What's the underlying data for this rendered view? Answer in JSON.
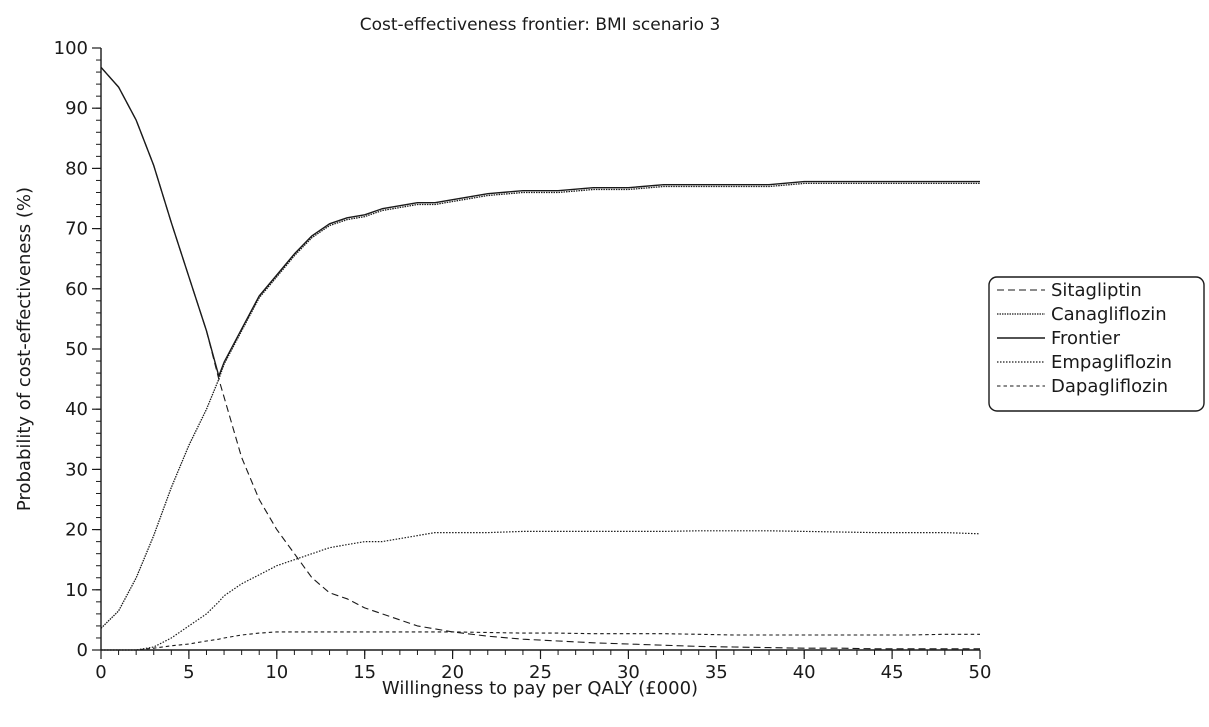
{
  "chart_data": {
    "type": "line",
    "title": "Cost-effectiveness frontier: BMI scenario 3",
    "xlabel": "Willingness to pay per QALY (£000)",
    "ylabel": "Probability of cost-effectiveness (%)",
    "xlim": [
      0,
      50
    ],
    "ylim": [
      0,
      100
    ],
    "x_ticks": [
      0,
      5,
      10,
      15,
      20,
      25,
      30,
      35,
      40,
      45,
      50
    ],
    "y_ticks": [
      0,
      10,
      20,
      30,
      40,
      50,
      60,
      70,
      80,
      90,
      100
    ],
    "grid": false,
    "legend_position": "right",
    "x": [
      0,
      1,
      2,
      3,
      4,
      5,
      6,
      6.7,
      7,
      8,
      9,
      10,
      11,
      12,
      13,
      14,
      15,
      16,
      17,
      18,
      19,
      20,
      22,
      24,
      26,
      28,
      30,
      32,
      34,
      36,
      38,
      40,
      42,
      44,
      46,
      48,
      50
    ],
    "series": [
      {
        "name": "Sitagliptin",
        "style": "dashed",
        "values": [
          96.8,
          93.5,
          88,
          80.5,
          71,
          62,
          53,
          45,
          42,
          32,
          25,
          20,
          16,
          12,
          9.5,
          8.5,
          7,
          6,
          5,
          4,
          3.5,
          3,
          2.3,
          1.8,
          1.5,
          1.2,
          1,
          0.8,
          0.6,
          0.5,
          0.4,
          0.3,
          0.3,
          0.2,
          0.2,
          0.2,
          0.2
        ]
      },
      {
        "name": "Canagliflozin",
        "style": "dotted-fine",
        "values": [
          3.6,
          6.5,
          12,
          19,
          27,
          34,
          40,
          45,
          47.5,
          53,
          58.5,
          62,
          65.5,
          68.5,
          70.5,
          71.5,
          72,
          73,
          73.5,
          74,
          74,
          74.5,
          75.5,
          76,
          76,
          76.5,
          76.5,
          77,
          77,
          77,
          77,
          77.5,
          77.5,
          77.5,
          77.5,
          77.5,
          77.5
        ]
      },
      {
        "name": "Frontier",
        "style": "solid",
        "values": [
          96.8,
          93.5,
          88,
          80.5,
          71,
          62,
          53,
          45.5,
          47.8,
          53.3,
          58.8,
          62.3,
          65.8,
          68.8,
          70.8,
          71.8,
          72.3,
          73.3,
          73.8,
          74.3,
          74.3,
          74.8,
          75.8,
          76.3,
          76.3,
          76.8,
          76.8,
          77.3,
          77.3,
          77.3,
          77.3,
          77.8,
          77.8,
          77.8,
          77.8,
          77.8,
          77.8
        ]
      },
      {
        "name": "Empagliflozin",
        "style": "dotted",
        "values": [
          0,
          0,
          0,
          0.5,
          2,
          4,
          6,
          8,
          9,
          11,
          12.5,
          14,
          15,
          16,
          17,
          17.5,
          18,
          18,
          18.5,
          19,
          19.5,
          19.5,
          19.5,
          19.7,
          19.7,
          19.7,
          19.7,
          19.7,
          19.8,
          19.8,
          19.8,
          19.7,
          19.6,
          19.5,
          19.5,
          19.5,
          19.3
        ]
      },
      {
        "name": "Dapagliflozin",
        "style": "short-dashed",
        "values": [
          0,
          0,
          0,
          0.3,
          0.7,
          1,
          1.5,
          1.8,
          2,
          2.5,
          2.8,
          3,
          3,
          3,
          3,
          3,
          3,
          3,
          3,
          3,
          3,
          3,
          2.9,
          2.8,
          2.8,
          2.7,
          2.7,
          2.7,
          2.6,
          2.5,
          2.5,
          2.5,
          2.5,
          2.5,
          2.5,
          2.6,
          2.6
        ]
      }
    ]
  }
}
